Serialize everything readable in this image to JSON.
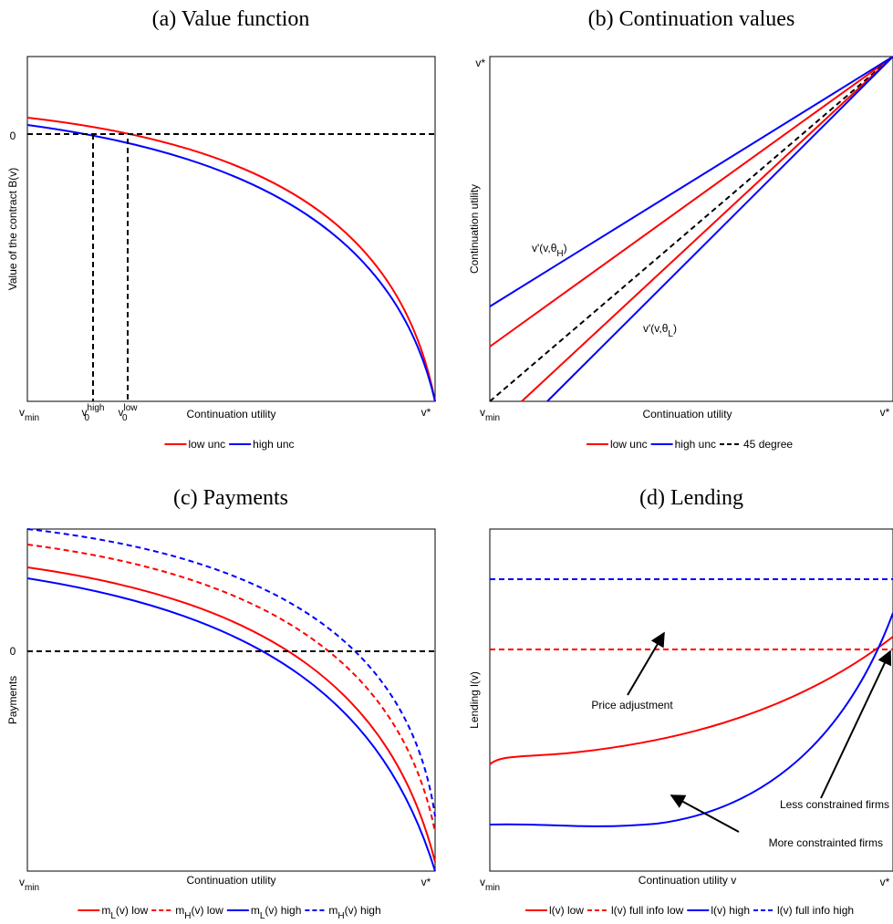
{
  "panels": [
    {
      "title": "(a) Value function",
      "x_label": "Continuation utility",
      "y_label": "Value of the contract B(v)",
      "y_tick": "0",
      "x_ticks": [
        {
          "base": "v",
          "sub": "min"
        },
        {
          "base": "v",
          "sup": "high",
          "sub": "0"
        },
        {
          "base": "v",
          "sup": "low",
          "sub": "0"
        },
        {
          "base": "v*"
        }
      ],
      "legend": [
        {
          "name": "low unc",
          "color": "#ff0000",
          "dashed": false
        },
        {
          "name": "high unc",
          "color": "#0000ff",
          "dashed": false
        }
      ]
    },
    {
      "title": "(b) Continuation values",
      "x_label": "Continuation utility",
      "y_label": "Continuation utility",
      "y_tick": "v*",
      "x_ticks": [
        {
          "base": "v",
          "sub": "min"
        },
        {
          "base": "v*"
        }
      ],
      "annotations": [
        {
          "base": "v'(v,θ",
          "sub": "H",
          "tail": ")"
        },
        {
          "base": "v'(v,θ",
          "sub": "L",
          "tail": ")"
        }
      ],
      "legend": [
        {
          "name": "low unc",
          "color": "#ff0000",
          "dashed": false
        },
        {
          "name": "high unc",
          "color": "#0000ff",
          "dashed": false
        },
        {
          "name": "45 degree",
          "color": "#000000",
          "dashed": true
        }
      ]
    },
    {
      "title": "(c) Payments",
      "x_label": "Continuation utility",
      "y_label": "Payments",
      "y_tick": "0",
      "x_ticks": [
        {
          "base": "v",
          "sub": "min"
        },
        {
          "base": "v*"
        }
      ],
      "legend": [
        {
          "name": {
            "base": "m",
            "sub": "L",
            "tail": "(v) low"
          },
          "color": "#ff0000",
          "dashed": false
        },
        {
          "name": {
            "base": "m",
            "sub": "H",
            "tail": "(v) low"
          },
          "color": "#ff0000",
          "dashed": true
        },
        {
          "name": {
            "base": "m",
            "sub": "L",
            "tail": "(v) high"
          },
          "color": "#0000ff",
          "dashed": false
        },
        {
          "name": {
            "base": "m",
            "sub": "H",
            "tail": "(v) high"
          },
          "color": "#0000ff",
          "dashed": true
        }
      ]
    },
    {
      "title": "(d) Lending",
      "x_label": "Continuation utility v",
      "y_label": "Lending l(v)",
      "x_ticks": [
        {
          "base": "v",
          "sub": "min"
        },
        {
          "base": "v*"
        }
      ],
      "annotations": [
        "Price adjustment",
        "Less constrained firms",
        "More constrainted firms"
      ],
      "legend": [
        {
          "name": "l(v) low",
          "color": "#ff0000",
          "dashed": false
        },
        {
          "name": "l(v) full info low",
          "color": "#ff0000",
          "dashed": true
        },
        {
          "name": "l(v) high",
          "color": "#0000ff",
          "dashed": false
        },
        {
          "name": "l(v) full info high",
          "color": "#0000ff",
          "dashed": true
        }
      ]
    }
  ]
}
